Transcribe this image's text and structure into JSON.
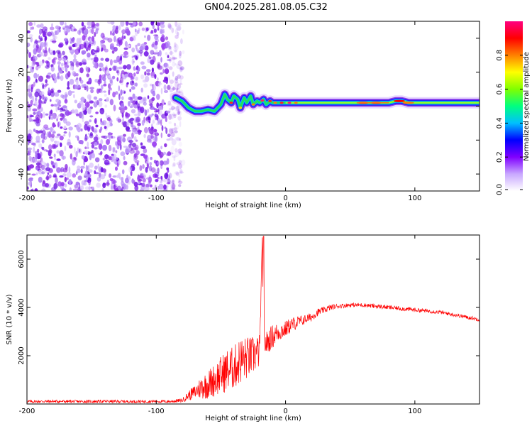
{
  "title": "GN04.2025.281.08.05.C32",
  "chart_data": [
    {
      "type": "heatmap",
      "title": "GN04.2025.281.08.05.C32",
      "xlabel": "Height of straight line (km)",
      "ylabel": "Frequency (Hz)",
      "xlim": [
        -200,
        150
      ],
      "ylim": [
        -50,
        50
      ],
      "xticks": [
        -200,
        -100,
        0,
        100
      ],
      "yticks": [
        -40,
        -20,
        0,
        20,
        40
      ],
      "colorbar": {
        "label": "Normalized spectral amplitude",
        "range": [
          0.0,
          1.0
        ],
        "ticks": [
          0.0,
          0.2,
          0.4,
          0.6,
          0.8
        ],
        "tick_labels": [
          "0.0",
          "0.2",
          "0.4",
          "0.6",
          "0.8"
        ],
        "colors": [
          "#ffffff",
          "#c9a8ff",
          "#8000ff",
          "#0000ff",
          "#00c0ff",
          "#00ff80",
          "#80ff00",
          "#ffff00",
          "#ff8000",
          "#ff0000",
          "#ff0080"
        ]
      },
      "noise_region": {
        "x": [
          -200,
          -85
        ],
        "y": [
          -50,
          50
        ]
      },
      "signal_track": {
        "x": [
          -85,
          -80,
          -75,
          -70,
          -65,
          -60,
          -55,
          -50,
          -47,
          -45,
          -42,
          -40,
          -37,
          -35,
          -32,
          -30,
          -27,
          -25,
          -22,
          -20,
          -17,
          -15,
          -12,
          -10,
          -5,
          0,
          10,
          20,
          40,
          60,
          80,
          85,
          90,
          95,
          100,
          150
        ],
        "y": [
          5,
          3,
          -1,
          -3,
          -3,
          -2,
          -3,
          1,
          7,
          4,
          2,
          6,
          4,
          -1,
          5,
          2,
          6,
          1,
          3,
          2,
          4,
          1,
          3,
          2,
          2,
          2,
          2,
          2,
          2,
          2,
          2,
          3,
          3,
          2,
          2,
          2
        ]
      }
    },
    {
      "type": "line",
      "xlabel": "Height of straight line (km)",
      "ylabel": "SNR (10 * v/v)",
      "xlim": [
        -200,
        150
      ],
      "ylim": [
        0,
        7000
      ],
      "xticks": [
        -200,
        -100,
        0,
        100
      ],
      "yticks": [
        2000,
        4000,
        6000
      ],
      "series": [
        {
          "name": "SNR",
          "color": "#ff0000",
          "x": [
            -200,
            -180,
            -160,
            -140,
            -120,
            -100,
            -90,
            -80,
            -75,
            -70,
            -65,
            -60,
            -55,
            -50,
            -45,
            -40,
            -35,
            -30,
            -25,
            -20,
            -18,
            -17,
            -16,
            -15,
            -12,
            -10,
            -5,
            0,
            5,
            10,
            15,
            20,
            25,
            30,
            35,
            40,
            50,
            60,
            70,
            80,
            90,
            100,
            110,
            120,
            130,
            140,
            150
          ],
          "y": [
            100,
            110,
            100,
            110,
            100,
            110,
            100,
            150,
            350,
            500,
            700,
            800,
            1000,
            1200,
            1400,
            1500,
            1800,
            1900,
            2000,
            2200,
            6900,
            2400,
            2500,
            2500,
            2700,
            2800,
            3000,
            3100,
            3300,
            3400,
            3500,
            3600,
            3800,
            3900,
            4000,
            4050,
            4100,
            4100,
            4050,
            4000,
            3950,
            3900,
            3850,
            3800,
            3700,
            3600,
            3500
          ],
          "noise_amplitude": [
            60,
            60,
            60,
            60,
            60,
            60,
            60,
            80,
            200,
            300,
            500,
            600,
            700,
            800,
            900,
            900,
            1000,
            900,
            800,
            700,
            0,
            600,
            500,
            500,
            500,
            500,
            400,
            350,
            300,
            250,
            200,
            180,
            150,
            130,
            120,
            100,
            90,
            90,
            90,
            90,
            90,
            90,
            80,
            80,
            80,
            80,
            80
          ]
        }
      ]
    }
  ]
}
